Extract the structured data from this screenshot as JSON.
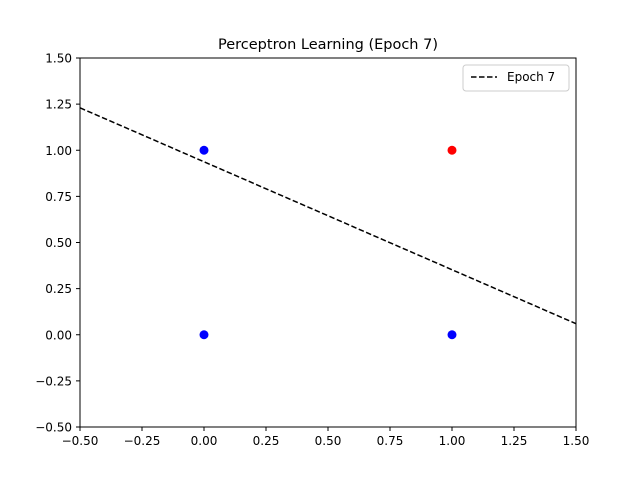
{
  "chart_data": {
    "type": "scatter",
    "title": "Perceptron Learning (Epoch 7)",
    "xlabel": "",
    "ylabel": "",
    "xlim": [
      -0.5,
      1.5
    ],
    "ylim": [
      -0.5,
      1.5
    ],
    "xticks": [
      -0.5,
      -0.25,
      0.0,
      0.25,
      0.5,
      0.75,
      1.0,
      1.25,
      1.5
    ],
    "xtick_labels": [
      "−0.50",
      "−0.25",
      "0.00",
      "0.25",
      "0.50",
      "0.75",
      "1.00",
      "1.25",
      "1.50"
    ],
    "yticks": [
      -0.5,
      -0.25,
      0.0,
      0.25,
      0.5,
      0.75,
      1.0,
      1.25,
      1.5
    ],
    "ytick_labels": [
      "−0.50",
      "−0.25",
      "0.00",
      "0.25",
      "0.50",
      "0.75",
      "1.00",
      "1.25",
      "1.50"
    ],
    "grid": false,
    "points": [
      {
        "x": 0,
        "y": 0,
        "color": "#0000ff"
      },
      {
        "x": 0,
        "y": 1,
        "color": "#0000ff"
      },
      {
        "x": 1,
        "y": 0,
        "color": "#0000ff"
      },
      {
        "x": 1,
        "y": 1,
        "color": "#ff0000"
      }
    ],
    "decision_line": {
      "label": "Epoch 7",
      "style": "dashed",
      "color": "#000000",
      "x": [
        -0.5,
        1.5
      ],
      "y": [
        1.23,
        0.06
      ]
    },
    "legend": {
      "placement": "top-right",
      "entries": [
        "Epoch 7"
      ]
    }
  }
}
